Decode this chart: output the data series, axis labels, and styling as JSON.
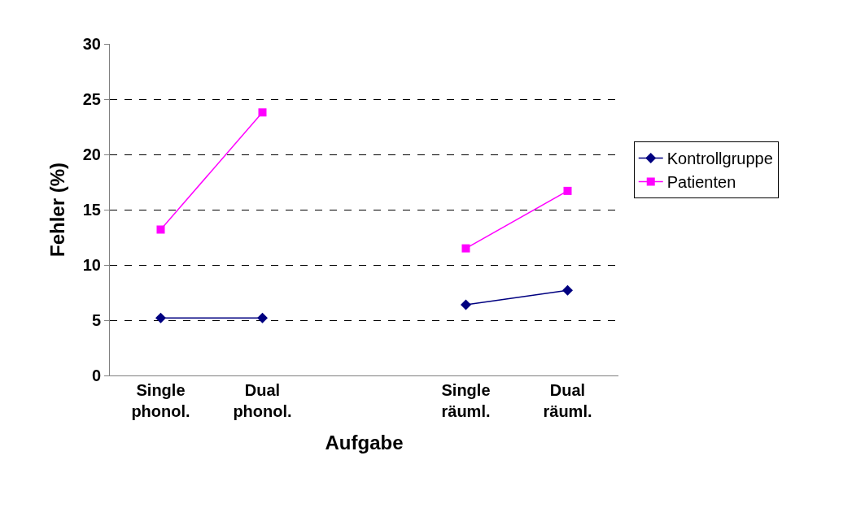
{
  "chart_data": {
    "type": "line",
    "xlabel": "Aufgabe",
    "ylabel": "Fehler (%)",
    "categories": [
      "Single phonol.",
      "Dual phonol.",
      null,
      "Single räuml.",
      "Dual räuml."
    ],
    "series": [
      {
        "name": "Kontrollgruppe",
        "color": "#000080",
        "marker": "diamond",
        "values": [
          5.2,
          5.2,
          null,
          6.4,
          7.7
        ]
      },
      {
        "name": "Patienten",
        "color": "#ff00ff",
        "marker": "square",
        "values": [
          13.2,
          23.8,
          null,
          11.5,
          16.7
        ]
      }
    ],
    "ylim": [
      0,
      30
    ],
    "yticks": [
      0,
      5,
      10,
      15,
      20,
      25,
      30
    ],
    "grid": "y",
    "legend": "right"
  }
}
